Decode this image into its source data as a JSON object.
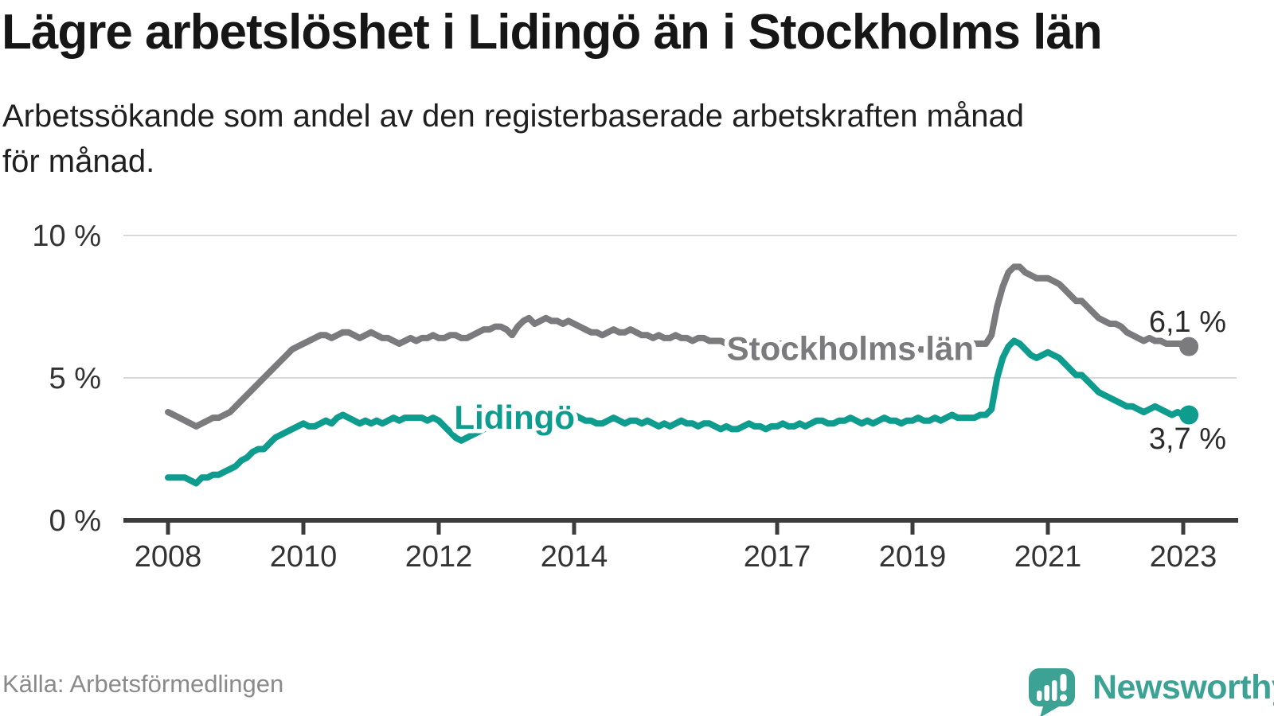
{
  "header": {
    "title": "Lägre arbetslöshet i Lidingö än i Stockholms län",
    "subtitle_line1": "Arbetssökande som andel av den registerbaserade arbetskraften månad",
    "subtitle_line2": "för månad."
  },
  "footer": {
    "source": "Källa: Arbetsförmedlingen",
    "brand": "Newsworthy"
  },
  "colors": {
    "accent_teal": "#0d9c8e",
    "series_gray": "#7b7b7e",
    "logo_teal": "#3ba294",
    "grid": "#d9d9d9",
    "axis": "#3c3c3c",
    "axis_text": "#333333",
    "end_label_text": "#2b2b2b"
  },
  "chart_data": {
    "type": "line",
    "title": "Lägre arbetslöshet i Lidingö än i Stockholms län",
    "xlabel": "",
    "ylabel": "",
    "unit": "%",
    "grid": true,
    "legend": "inline-labels-on-lines",
    "x_start_year": 2008,
    "x_step_months": 1,
    "x_range_years": [
      2007.35,
      2023.8
    ],
    "ylim": [
      0,
      10.4
    ],
    "x_axis": {
      "ticks": [
        {
          "year": 2008,
          "label": "2008"
        },
        {
          "year": 2010,
          "label": "2010"
        },
        {
          "year": 2012,
          "label": "2012"
        },
        {
          "year": 2014,
          "label": "2014"
        },
        {
          "year": 2017,
          "label": "2017"
        },
        {
          "year": 2019,
          "label": "2019"
        },
        {
          "year": 2021,
          "label": "2021"
        },
        {
          "year": 2023,
          "label": "2023"
        }
      ]
    },
    "y_axis": {
      "ticks": [
        {
          "value": 0,
          "label": "0 %"
        },
        {
          "value": 5,
          "label": "5 %"
        },
        {
          "value": 10,
          "label": "10 %"
        }
      ]
    },
    "series": [
      {
        "name": "Stockholms län",
        "color": "#7b7b7e",
        "end_label": "6,1 %",
        "end_value": 6.1,
        "label_anchor": {
          "year": 2018.08,
          "value": 6.05
        },
        "end_label_side": "above",
        "values": [
          3.8,
          3.7,
          3.6,
          3.5,
          3.4,
          3.3,
          3.4,
          3.5,
          3.6,
          3.6,
          3.7,
          3.8,
          4.0,
          4.2,
          4.4,
          4.6,
          4.8,
          5.0,
          5.2,
          5.4,
          5.6,
          5.8,
          6.0,
          6.1,
          6.2,
          6.3,
          6.4,
          6.5,
          6.5,
          6.4,
          6.5,
          6.6,
          6.6,
          6.5,
          6.4,
          6.5,
          6.6,
          6.5,
          6.4,
          6.4,
          6.3,
          6.2,
          6.3,
          6.4,
          6.3,
          6.4,
          6.4,
          6.5,
          6.4,
          6.4,
          6.5,
          6.5,
          6.4,
          6.4,
          6.5,
          6.6,
          6.7,
          6.7,
          6.8,
          6.8,
          6.7,
          6.5,
          6.8,
          7.0,
          7.1,
          6.9,
          7.0,
          7.1,
          7.0,
          7.0,
          6.9,
          7.0,
          6.9,
          6.8,
          6.7,
          6.6,
          6.6,
          6.5,
          6.6,
          6.7,
          6.6,
          6.6,
          6.7,
          6.6,
          6.5,
          6.5,
          6.4,
          6.5,
          6.4,
          6.4,
          6.5,
          6.4,
          6.4,
          6.3,
          6.4,
          6.4,
          6.3,
          6.3,
          6.3,
          6.2,
          6.2,
          6.2,
          6.3,
          6.3,
          6.2,
          6.2,
          6.2,
          6.2,
          6.2,
          6.2,
          6.1,
          6.1,
          6.1,
          6.1,
          6.2,
          6.2,
          6.2,
          6.1,
          6.1,
          6.1,
          6.1,
          6.1,
          6.1,
          6.0,
          6.0,
          6.0,
          6.1,
          6.1,
          6.0,
          6.0,
          6.0,
          6.0,
          6.0,
          6.0,
          6.0,
          6.0,
          6.0,
          6.1,
          6.1,
          6.2,
          6.1,
          6.1,
          6.1,
          6.2,
          6.2,
          6.2,
          6.5,
          7.5,
          8.2,
          8.7,
          8.9,
          8.9,
          8.7,
          8.6,
          8.5,
          8.5,
          8.5,
          8.4,
          8.3,
          8.1,
          7.9,
          7.7,
          7.7,
          7.5,
          7.3,
          7.1,
          7.0,
          6.9,
          6.9,
          6.8,
          6.6,
          6.5,
          6.4,
          6.3,
          6.4,
          6.3,
          6.3,
          6.2,
          6.2,
          6.2,
          6.2,
          6.1
        ]
      },
      {
        "name": "Lidingö",
        "color": "#0d9c8e",
        "end_label": "3,7 %",
        "end_value": 3.7,
        "label_anchor": {
          "year": 2013.12,
          "value": 3.63
        },
        "end_label_side": "below",
        "values": [
          1.5,
          1.5,
          1.5,
          1.5,
          1.4,
          1.3,
          1.5,
          1.5,
          1.6,
          1.6,
          1.7,
          1.8,
          1.9,
          2.1,
          2.2,
          2.4,
          2.5,
          2.5,
          2.7,
          2.9,
          3.0,
          3.1,
          3.2,
          3.3,
          3.4,
          3.3,
          3.3,
          3.4,
          3.5,
          3.4,
          3.6,
          3.7,
          3.6,
          3.5,
          3.4,
          3.5,
          3.4,
          3.5,
          3.4,
          3.5,
          3.6,
          3.5,
          3.6,
          3.6,
          3.6,
          3.6,
          3.5,
          3.6,
          3.5,
          3.3,
          3.1,
          2.9,
          2.8,
          2.9,
          3.0,
          3.1,
          3.2,
          3.3,
          3.4,
          3.5,
          3.5,
          3.4,
          3.5,
          3.6,
          3.6,
          3.5,
          3.6,
          3.7,
          3.7,
          3.6,
          3.7,
          3.7,
          3.7,
          3.6,
          3.5,
          3.5,
          3.4,
          3.4,
          3.5,
          3.6,
          3.5,
          3.4,
          3.5,
          3.5,
          3.4,
          3.5,
          3.4,
          3.3,
          3.4,
          3.3,
          3.4,
          3.5,
          3.4,
          3.4,
          3.3,
          3.4,
          3.4,
          3.3,
          3.2,
          3.3,
          3.2,
          3.2,
          3.3,
          3.4,
          3.3,
          3.3,
          3.2,
          3.3,
          3.3,
          3.4,
          3.3,
          3.3,
          3.4,
          3.3,
          3.4,
          3.5,
          3.5,
          3.4,
          3.4,
          3.5,
          3.5,
          3.6,
          3.5,
          3.4,
          3.5,
          3.4,
          3.5,
          3.6,
          3.5,
          3.5,
          3.4,
          3.5,
          3.5,
          3.6,
          3.5,
          3.5,
          3.6,
          3.5,
          3.6,
          3.7,
          3.6,
          3.6,
          3.6,
          3.6,
          3.7,
          3.7,
          3.9,
          5.0,
          5.7,
          6.1,
          6.3,
          6.2,
          6.0,
          5.8,
          5.7,
          5.8,
          5.9,
          5.8,
          5.7,
          5.5,
          5.3,
          5.1,
          5.1,
          4.9,
          4.7,
          4.5,
          4.4,
          4.3,
          4.2,
          4.1,
          4.0,
          4.0,
          3.9,
          3.8,
          3.9,
          4.0,
          3.9,
          3.8,
          3.7,
          3.8,
          3.7,
          3.7
        ]
      }
    ]
  }
}
